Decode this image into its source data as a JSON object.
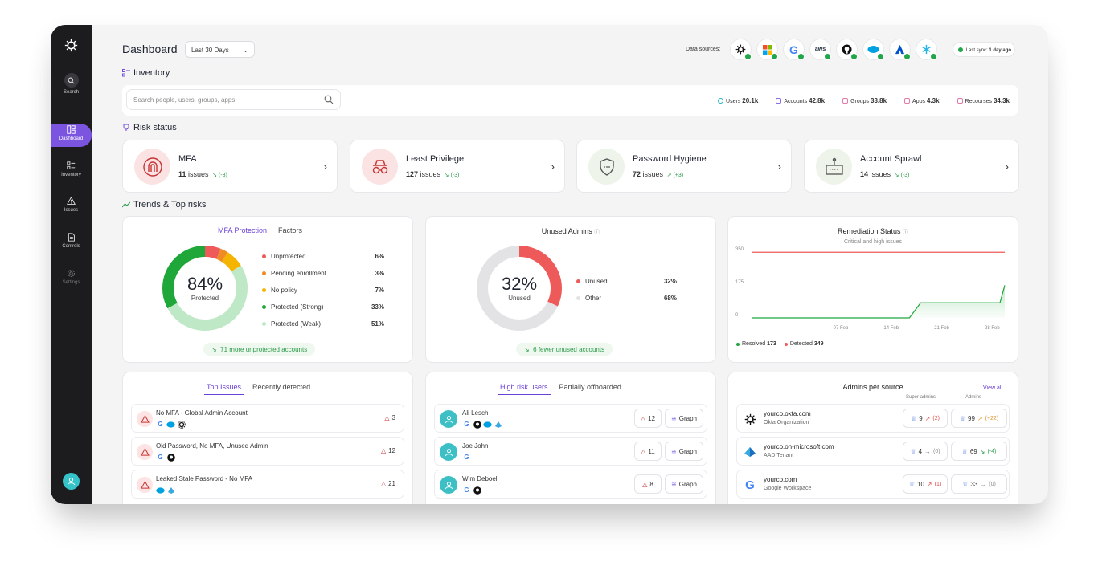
{
  "sidebar": {
    "items": [
      {
        "label": "Search"
      },
      {
        "label": "Dashboard"
      },
      {
        "label": "Inventory"
      },
      {
        "label": "Issues"
      },
      {
        "label": "Controls"
      },
      {
        "label": "Settings"
      }
    ]
  },
  "header": {
    "title": "Dashboard",
    "date_range": "Last 30 Days",
    "data_sources_label": "Data sources:",
    "last_sync_label": "Last sync:",
    "last_sync_value": "1 day ago"
  },
  "inventory": {
    "title": "Inventory",
    "search_placeholder": "Search people, users, groups, apps",
    "stats": [
      {
        "label": "Users",
        "value": "20.1k"
      },
      {
        "label": "Accounts",
        "value": "42.8k"
      },
      {
        "label": "Groups",
        "value": "33.8k"
      },
      {
        "label": "Apps",
        "value": "4.3k"
      },
      {
        "label": "Recourses",
        "value": "34.3k"
      }
    ]
  },
  "risk": {
    "title": "Risk status",
    "cards": [
      {
        "name": "MFA",
        "count": "11",
        "issues_label": "issues",
        "trend": "(-3)",
        "icon": "fingerprint-icon"
      },
      {
        "name": "Least Privilege",
        "count": "127",
        "issues_label": "issues",
        "trend": "(-3)",
        "icon": "spy-icon"
      },
      {
        "name": "Password Hygiene",
        "count": "72",
        "issues_label": "issues",
        "trend": "(+3)",
        "icon": "shield-icon"
      },
      {
        "name": "Account Sprawl",
        "count": "14",
        "issues_label": "issues",
        "trend": "(-3)",
        "icon": "sprawl-icon"
      }
    ]
  },
  "trends": {
    "title": "Trends & Top risks",
    "mfa": {
      "tabs": [
        "MFA Protection",
        "Factors"
      ],
      "center_value": "84%",
      "center_label": "Protected",
      "legend": [
        {
          "label": "Unprotected",
          "value": "6%",
          "color": "#ee5a5a"
        },
        {
          "label": "Pending enrollment",
          "value": "3%",
          "color": "#f08a24"
        },
        {
          "label": "No policy",
          "value": "7%",
          "color": "#f4b400"
        },
        {
          "label": "Protected (Strong)",
          "value": "33%",
          "color": "#1fa73a"
        },
        {
          "label": "Protected (Weak)",
          "value": "51%",
          "color": "#bfe8c6"
        }
      ],
      "footer": "71 more unprotected accounts"
    },
    "unused": {
      "title": "Unused Admins",
      "center_value": "32%",
      "center_label": "Unused",
      "legend": [
        {
          "label": "Unused",
          "value": "32%",
          "color": "#ee5a5a"
        },
        {
          "label": "Other",
          "value": "68%",
          "color": "#e3e3e6"
        }
      ],
      "footer": "6 fewer unused accounts"
    },
    "remediation": {
      "title": "Remediation Status",
      "subtitle": "Critical and high issues",
      "legend": [
        {
          "label": "Resolved",
          "value": "173",
          "color": "#1fa73a"
        },
        {
          "label": "Detected",
          "value": "349",
          "color": "#ee5a5a"
        }
      ]
    }
  },
  "chart_data": {
    "type": "area",
    "title": "Remediation Status",
    "subtitle": "Critical and high issues",
    "x_ticks": [
      "07 Feb",
      "14 Feb",
      "21 Feb",
      "28 Feb"
    ],
    "y_ticks": [
      "350",
      "175",
      "0"
    ],
    "ylim": [
      0,
      350
    ],
    "series": [
      {
        "name": "Detected",
        "color": "#ee5a5a",
        "points": [
          [
            0,
            349
          ],
          [
            1,
            349
          ],
          [
            2,
            349
          ],
          [
            3,
            349
          ],
          [
            4,
            349
          ],
          [
            5,
            349
          ],
          [
            6,
            349
          ]
        ]
      },
      {
        "name": "Resolved",
        "color": "#1fa73a",
        "points": [
          [
            0,
            0
          ],
          [
            1,
            0
          ],
          [
            2,
            0
          ],
          [
            3,
            0
          ],
          [
            4,
            80
          ],
          [
            5,
            80
          ],
          [
            6,
            173
          ]
        ]
      }
    ]
  },
  "top_issues": {
    "tabs": [
      "Top Issues",
      "Recently detected"
    ],
    "rows": [
      {
        "title": "No MFA - Global Admin Account",
        "count": "3",
        "sources": [
          "G",
          "sf",
          "ok"
        ]
      },
      {
        "title": "Old Password, No MFA, Unused Admin",
        "count": "12",
        "sources": [
          "G",
          "gh"
        ]
      },
      {
        "title": "Leaked Stale Password - No MFA",
        "count": "21",
        "sources": [
          "sf",
          "az"
        ]
      }
    ]
  },
  "high_risk": {
    "tabs": [
      "High risk users",
      "Partially offboarded"
    ],
    "graph_label": "Graph",
    "rows": [
      {
        "name": "Ali Lesch",
        "count": "12",
        "sources": [
          "G",
          "gh",
          "sf",
          "az"
        ]
      },
      {
        "name": "Joe John",
        "count": "11",
        "sources": [
          "G"
        ]
      },
      {
        "name": "Wim Deboel",
        "count": "8",
        "sources": [
          "G",
          "gh"
        ]
      }
    ]
  },
  "admins": {
    "title": "Admins per source",
    "view_all": "View all",
    "col_super": "Super admins",
    "col_admins": "Admins",
    "rows": [
      {
        "domain": "yourco.okta.com",
        "org": "Okta Organization",
        "super": "9",
        "super_delta": "(2)",
        "admins": "99",
        "admins_delta": "(+22)"
      },
      {
        "domain": "yourco.on-microsoft.com",
        "org": "AAD Tenant",
        "super": "4",
        "super_delta": "(0)",
        "admins": "69",
        "admins_delta": "(-4)"
      },
      {
        "domain": "yourco.com",
        "org": "Google Workspace",
        "super": "10",
        "super_delta": "(1)",
        "admins": "33",
        "admins_delta": "(0)"
      }
    ]
  }
}
